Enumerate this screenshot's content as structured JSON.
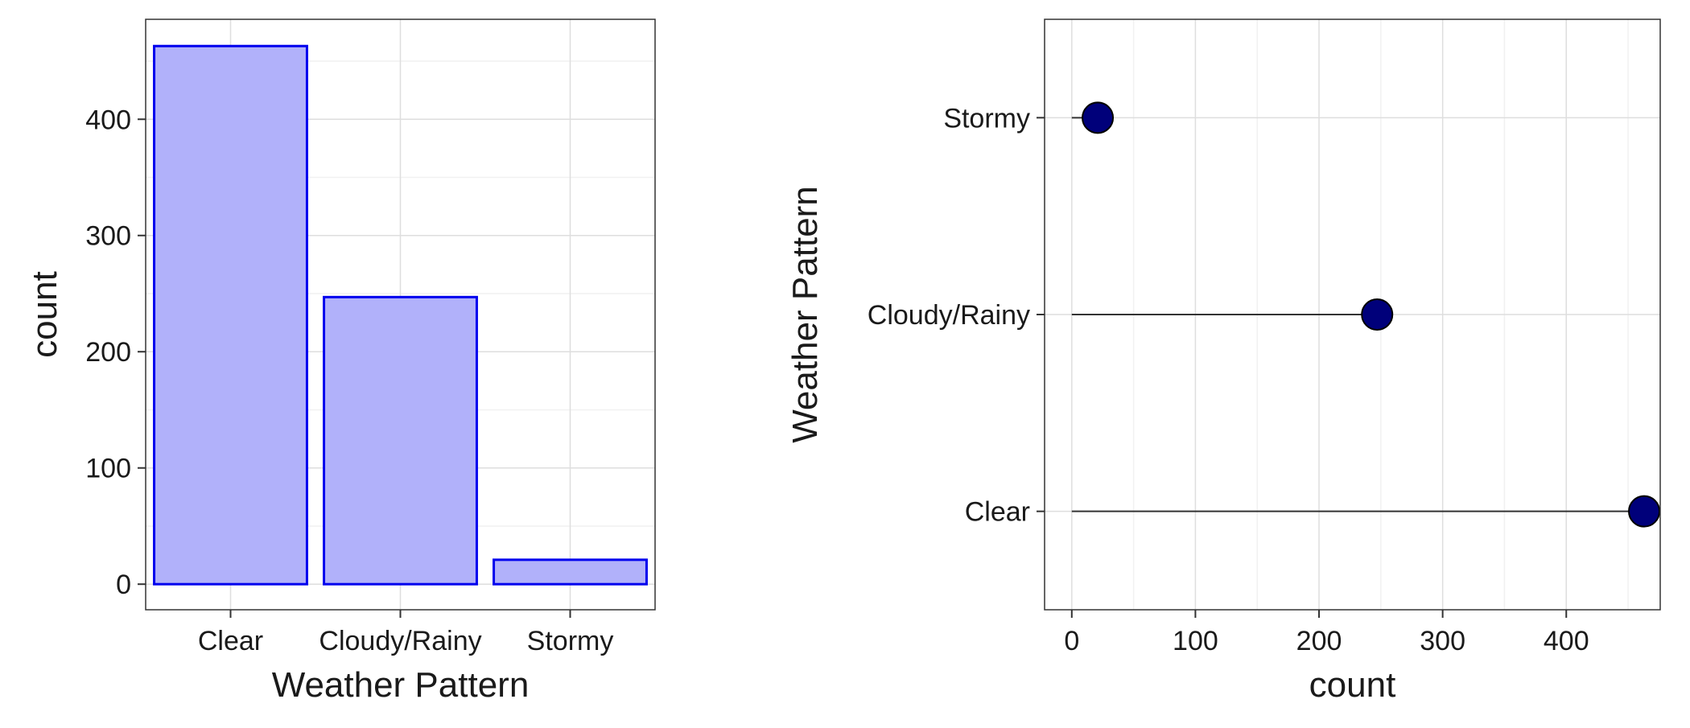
{
  "chart_data": [
    {
      "type": "bar",
      "categories": [
        "Clear",
        "Cloudy/Rainy",
        "Stormy"
      ],
      "values": [
        463,
        247,
        21
      ],
      "xlabel": "Weather Pattern",
      "ylabel": "count",
      "ylim": [
        -22,
        486
      ],
      "yticks": [
        0,
        100,
        200,
        300,
        400
      ],
      "grid": true,
      "colors": {
        "fill": "#b1b1fa",
        "stroke": "#0000ee"
      }
    },
    {
      "type": "scatter",
      "style": "lollipop",
      "orientation": "horizontal",
      "categories": [
        "Clear",
        "Cloudy/Rainy",
        "Stormy"
      ],
      "values": [
        463,
        247,
        21
      ],
      "xlabel": "count",
      "ylabel": "Weather Pattern",
      "xlim": [
        -22,
        476
      ],
      "xticks": [
        0,
        100,
        200,
        300,
        400
      ],
      "grid": true,
      "colors": {
        "point": "#00007a",
        "line": "#333333"
      }
    }
  ]
}
